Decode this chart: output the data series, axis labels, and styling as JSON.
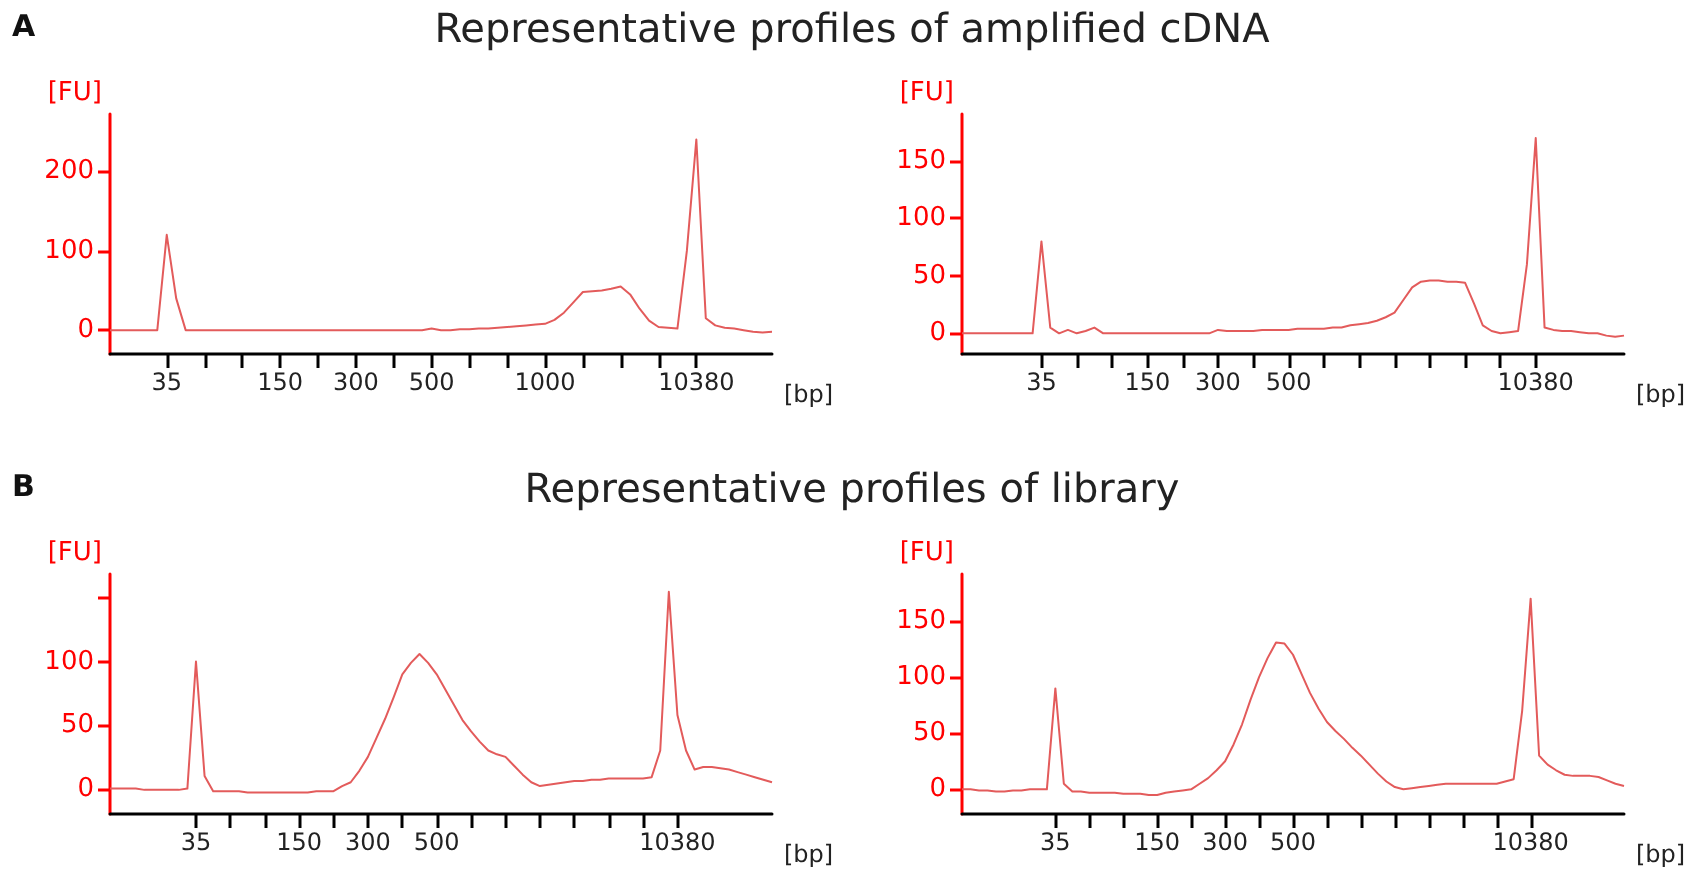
{
  "chart_data": [
    {
      "type": "line",
      "title": "Representative profiles of amplified cDNA",
      "annotations": [
        "A"
      ],
      "xlabel": "[bp]",
      "ylabel": "[FU]",
      "ylim": [
        -30,
        272
      ],
      "yticks": [
        0,
        100,
        200
      ],
      "categories": [
        null,
        null,
        null,
        null,
        null,
        null,
        "35",
        null,
        null,
        null,
        null,
        null,
        null,
        null,
        null,
        null,
        null,
        null,
        "150",
        null,
        null,
        null,
        null,
        null,
        null,
        null,
        "300",
        null,
        null,
        null,
        null,
        null,
        null,
        null,
        "500",
        null,
        null,
        null,
        null,
        null,
        null,
        null,
        null,
        null,
        null,
        null,
        "1000",
        null,
        null,
        null,
        null,
        null,
        null,
        null,
        null,
        null,
        null,
        null,
        null,
        null,
        null,
        null,
        "10380",
        null,
        null,
        null,
        null,
        null,
        null,
        null,
        null
      ],
      "series": [
        {
          "color": "#e35b5b",
          "values": [
            0,
            0,
            0,
            0,
            0,
            0,
            120,
            40,
            0,
            0,
            0,
            0,
            0,
            0,
            0,
            0,
            0,
            0,
            0,
            0,
            0,
            0,
            0,
            0,
            0,
            0,
            0,
            0,
            0,
            0,
            0,
            0,
            0,
            0,
            2,
            0,
            0,
            1,
            1,
            2,
            2,
            3,
            4,
            5,
            6,
            7,
            8,
            13,
            22,
            35,
            48,
            49,
            50,
            52,
            55,
            45,
            27,
            12,
            4,
            3,
            2,
            100,
            240,
            15,
            6,
            3,
            2,
            0,
            -2,
            -3,
            -2
          ]
        }
      ]
    },
    {
      "type": "line",
      "xlabel": "[bp]",
      "ylabel": "[FU]",
      "ylim": [
        -18,
        191
      ],
      "yticks": [
        0,
        50,
        100,
        150
      ],
      "categories": [
        null,
        null,
        null,
        null,
        null,
        null,
        null,
        null,
        null,
        "35",
        null,
        null,
        null,
        null,
        null,
        null,
        null,
        null,
        null,
        null,
        null,
        "150",
        null,
        null,
        null,
        null,
        null,
        null,
        null,
        "300",
        null,
        null,
        null,
        null,
        null,
        null,
        null,
        "500",
        null,
        null,
        null,
        null,
        null,
        null,
        null,
        null,
        null,
        null,
        null,
        null,
        null,
        null,
        null,
        null,
        null,
        null,
        null,
        null,
        null,
        null,
        null,
        null,
        null,
        null,
        null,
        "10380",
        null,
        null,
        null,
        null,
        null,
        null,
        null,
        null,
        null,
        null
      ],
      "series": [
        {
          "color": "#e35b5b",
          "values": [
            0,
            0,
            0,
            0,
            0,
            0,
            0,
            0,
            0,
            80,
            5,
            0,
            3,
            0,
            2,
            5,
            0,
            0,
            0,
            0,
            0,
            0,
            0,
            0,
            0,
            0,
            0,
            0,
            0,
            3,
            2,
            2,
            2,
            2,
            3,
            3,
            3,
            3,
            4,
            4,
            4,
            4,
            5,
            5,
            7,
            8,
            9,
            11,
            14,
            18,
            29,
            40,
            45,
            46,
            46,
            45,
            45,
            44,
            26,
            7,
            2,
            0,
            1,
            2,
            60,
            170,
            5,
            3,
            2,
            2,
            1,
            0,
            0,
            -2,
            -3,
            -2
          ]
        }
      ]
    },
    {
      "type": "line",
      "title": "Representative profiles of library",
      "annotations": [
        "B"
      ],
      "xlabel": "[bp]",
      "ylabel": "[FU]",
      "ylim": [
        -20,
        169
      ],
      "yticks": [
        0,
        50,
        100,
        {
          "value": 150,
          "label": null
        }
      ],
      "categories": [
        null,
        null,
        null,
        null,
        null,
        null,
        null,
        null,
        null,
        null,
        "35",
        null,
        null,
        null,
        null,
        null,
        null,
        null,
        null,
        null,
        null,
        null,
        "150",
        null,
        null,
        null,
        null,
        null,
        null,
        null,
        "300",
        null,
        null,
        null,
        null,
        null,
        null,
        null,
        "500",
        null,
        null,
        null,
        null,
        null,
        null,
        null,
        null,
        null,
        null,
        null,
        null,
        null,
        null,
        null,
        null,
        null,
        null,
        null,
        null,
        null,
        null,
        null,
        null,
        null,
        null,
        null,
        "10380",
        null,
        null,
        null,
        null,
        null,
        null,
        null,
        null,
        null,
        null,
        null
      ],
      "series": [
        {
          "color": "#e35b5b",
          "values": [
            0,
            0,
            0,
            0,
            -1,
            -1,
            -1,
            -1,
            -1,
            0,
            100,
            10,
            -2,
            -2,
            -2,
            -2,
            -3,
            -3,
            -3,
            -3,
            -3,
            -3,
            -3,
            -3,
            -2,
            -2,
            -2,
            2,
            5,
            14,
            25,
            40,
            55,
            72,
            90,
            99,
            106,
            99,
            90,
            78,
            66,
            54,
            45,
            37,
            30,
            27,
            25,
            18,
            11,
            5,
            2,
            3,
            4,
            5,
            6,
            6,
            7,
            7,
            8,
            8,
            8,
            8,
            8,
            9,
            30,
            155,
            58,
            30,
            15,
            17,
            17,
            16,
            15,
            13,
            11,
            9,
            7,
            5
          ]
        }
      ]
    },
    {
      "type": "line",
      "xlabel": "[bp]",
      "ylabel": "[FU]",
      "ylim": [
        -22,
        192
      ],
      "yticks": [
        0,
        50,
        100,
        150
      ],
      "categories": [
        null,
        null,
        null,
        null,
        null,
        null,
        null,
        null,
        null,
        null,
        null,
        "35",
        null,
        null,
        null,
        null,
        null,
        null,
        null,
        null,
        null,
        null,
        null,
        "150",
        null,
        null,
        null,
        null,
        null,
        null,
        null,
        "300",
        null,
        null,
        null,
        null,
        null,
        null,
        null,
        "500",
        null,
        null,
        null,
        null,
        null,
        null,
        null,
        null,
        null,
        null,
        null,
        null,
        null,
        null,
        null,
        null,
        null,
        null,
        null,
        null,
        null,
        null,
        null,
        null,
        null,
        null,
        null,
        "10380",
        null,
        null,
        null,
        null,
        null,
        null,
        null,
        null,
        null,
        null,
        null
      ],
      "series": [
        {
          "color": "#e35b5b",
          "values": [
            0,
            0,
            -1,
            -1,
            -2,
            -2,
            -1,
            -1,
            0,
            0,
            0,
            90,
            5,
            -2,
            -2,
            -3,
            -3,
            -3,
            -3,
            -4,
            -4,
            -4,
            -5,
            -5,
            -3,
            -2,
            -1,
            0,
            5,
            10,
            17,
            25,
            40,
            58,
            80,
            100,
            117,
            131,
            130,
            120,
            103,
            86,
            72,
            60,
            52,
            45,
            37,
            30,
            22,
            14,
            7,
            2,
            0,
            1,
            2,
            3,
            4,
            5,
            5,
            5,
            5,
            5,
            5,
            5,
            7,
            9,
            70,
            170,
            30,
            22,
            17,
            13,
            12,
            12,
            12,
            11,
            8,
            5,
            3
          ]
        }
      ]
    }
  ]
}
